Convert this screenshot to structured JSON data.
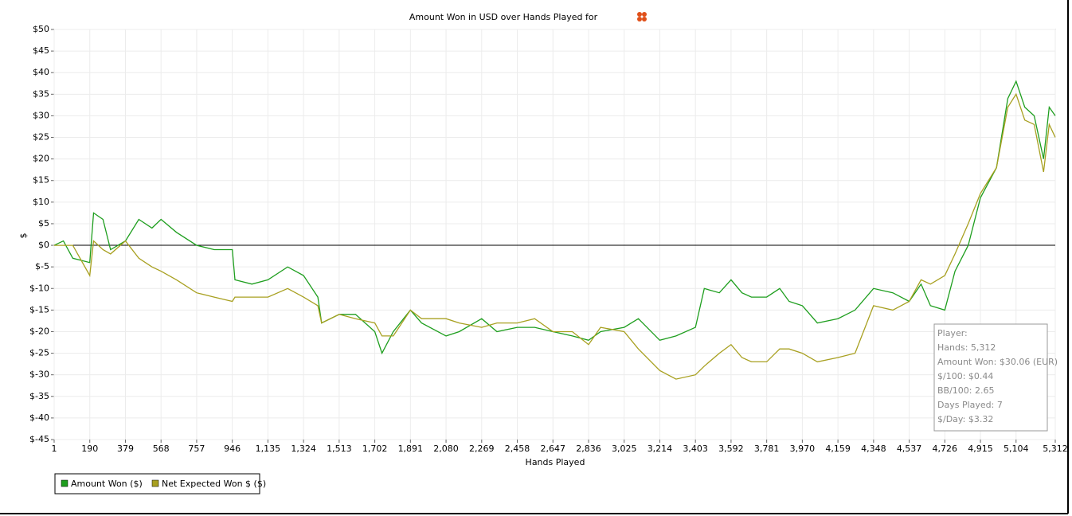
{
  "chart_data": {
    "type": "line",
    "title": "Amount Won in USD over Hands Played for",
    "xlabel": "Hands Played",
    "ylabel": "$",
    "xlim": [
      1,
      5312
    ],
    "ylim": [
      -45,
      50
    ],
    "grid": true,
    "legend": "bottom-left",
    "xticks": [
      1,
      190,
      379,
      568,
      757,
      946,
      {
        "value": 1135,
        "label": "1,135"
      },
      {
        "value": 1324,
        "label": "1,324"
      },
      {
        "value": 1513,
        "label": "1,513"
      },
      {
        "value": 1702,
        "label": "1,702"
      },
      {
        "value": 1891,
        "label": "1,891"
      },
      {
        "value": 2080,
        "label": "2,080"
      },
      {
        "value": 2269,
        "label": "2,269"
      },
      {
        "value": 2458,
        "label": "2,458"
      },
      {
        "value": 2647,
        "label": "2,647"
      },
      {
        "value": 2836,
        "label": "2,836"
      },
      {
        "value": 3025,
        "label": "3,025"
      },
      {
        "value": 3214,
        "label": "3,214"
      },
      {
        "value": 3403,
        "label": "3,403"
      },
      {
        "value": 3592,
        "label": "3,592"
      },
      {
        "value": 3781,
        "label": "3,781"
      },
      {
        "value": 3970,
        "label": "3,970"
      },
      {
        "value": 4159,
        "label": "4,159"
      },
      {
        "value": 4348,
        "label": "4,348"
      },
      {
        "value": 4537,
        "label": "4,537"
      },
      {
        "value": 4726,
        "label": "4,726"
      },
      {
        "value": 4915,
        "label": "4,915"
      },
      {
        "value": 5104,
        "label": "5,104"
      },
      {
        "value": 5312,
        "label": "5,312"
      }
    ],
    "yticks": [
      {
        "value": 50,
        "label": "$50"
      },
      {
        "value": 45,
        "label": "$45"
      },
      {
        "value": 40,
        "label": "$40"
      },
      {
        "value": 35,
        "label": "$35"
      },
      {
        "value": 30,
        "label": "$30"
      },
      {
        "value": 25,
        "label": "$25"
      },
      {
        "value": 20,
        "label": "$20"
      },
      {
        "value": 15,
        "label": "$15"
      },
      {
        "value": 10,
        "label": "$10"
      },
      {
        "value": 5,
        "label": "$5"
      },
      {
        "value": 0,
        "label": "$0"
      },
      {
        "value": -5,
        "label": "$-5"
      },
      {
        "value": -10,
        "label": "$-10"
      },
      {
        "value": -15,
        "label": "$-15"
      },
      {
        "value": -20,
        "label": "$-20"
      },
      {
        "value": -25,
        "label": "$-25"
      },
      {
        "value": -30,
        "label": "$-30"
      },
      {
        "value": -35,
        "label": "$-35"
      },
      {
        "value": -40,
        "label": "$-40"
      },
      {
        "value": -45,
        "label": "$-45"
      }
    ],
    "x": [
      1,
      50,
      100,
      190,
      210,
      260,
      300,
      379,
      450,
      520,
      568,
      650,
      757,
      850,
      946,
      960,
      1050,
      1135,
      1240,
      1324,
      1400,
      1420,
      1513,
      1600,
      1702,
      1740,
      1800,
      1891,
      1950,
      2080,
      2150,
      2269,
      2350,
      2458,
      2550,
      2647,
      2750,
      2836,
      2900,
      3025,
      3100,
      3214,
      3300,
      3403,
      3450,
      3530,
      3592,
      3650,
      3700,
      3781,
      3850,
      3900,
      3970,
      4050,
      4159,
      4250,
      4348,
      4450,
      4537,
      4600,
      4650,
      4726,
      4780,
      4850,
      4915,
      5000,
      5060,
      5104,
      5150,
      5200,
      5250,
      5280,
      5312
    ],
    "series": [
      {
        "name": "Amount Won ($)",
        "color": "#1e9e1e",
        "values": [
          0,
          1,
          -3,
          -4,
          7.5,
          6,
          -1,
          1,
          6,
          4,
          6,
          3,
          0,
          -1,
          -1,
          -8,
          -9,
          -8,
          -5,
          -7,
          -12,
          -18,
          -16,
          -16,
          -20,
          -25,
          -20,
          -15,
          -18,
          -21,
          -20,
          -17,
          -20,
          -19,
          -19,
          -20,
          -21,
          -22,
          -20,
          -19,
          -17,
          -22,
          -21,
          -19,
          -10,
          -11,
          -8,
          -11,
          -12,
          -12,
          -10,
          -13,
          -14,
          -18,
          -17,
          -15,
          -10,
          -11,
          -13,
          -9,
          -14,
          -15,
          -6,
          0,
          11,
          18,
          34,
          38,
          32,
          30,
          20,
          32,
          30
        ]
      },
      {
        "name": "Net Expected Won $ ($)",
        "color": "#a8a020",
        "values": [
          0,
          0,
          0,
          -7,
          1,
          -1,
          -2,
          1,
          -3,
          -5,
          -6,
          -8,
          -11,
          -12,
          -13,
          -12,
          -12,
          -12,
          -10,
          -12,
          -14,
          -18,
          -16,
          -17,
          -18,
          -21,
          -21,
          -15,
          -17,
          -17,
          -18,
          -19,
          -18,
          -18,
          -17,
          -20,
          -20,
          -23,
          -19,
          -20,
          -24,
          -29,
          -31,
          -30,
          -28,
          -25,
          -23,
          -26,
          -27,
          -27,
          -24,
          -24,
          -25,
          -27,
          -26,
          -25,
          -14,
          -15,
          -13,
          -8,
          -9,
          -7,
          -2,
          5,
          12,
          18,
          32,
          35,
          29,
          28,
          17,
          28,
          25
        ]
      }
    ],
    "info_box": [
      "Player:",
      "Hands: 5,312",
      "Amount Won: $30.06 (EUR)",
      "$/100: $0.44",
      "BB/100: 2.65",
      "Days Played: 7",
      "$/Day: $3.32"
    ]
  }
}
